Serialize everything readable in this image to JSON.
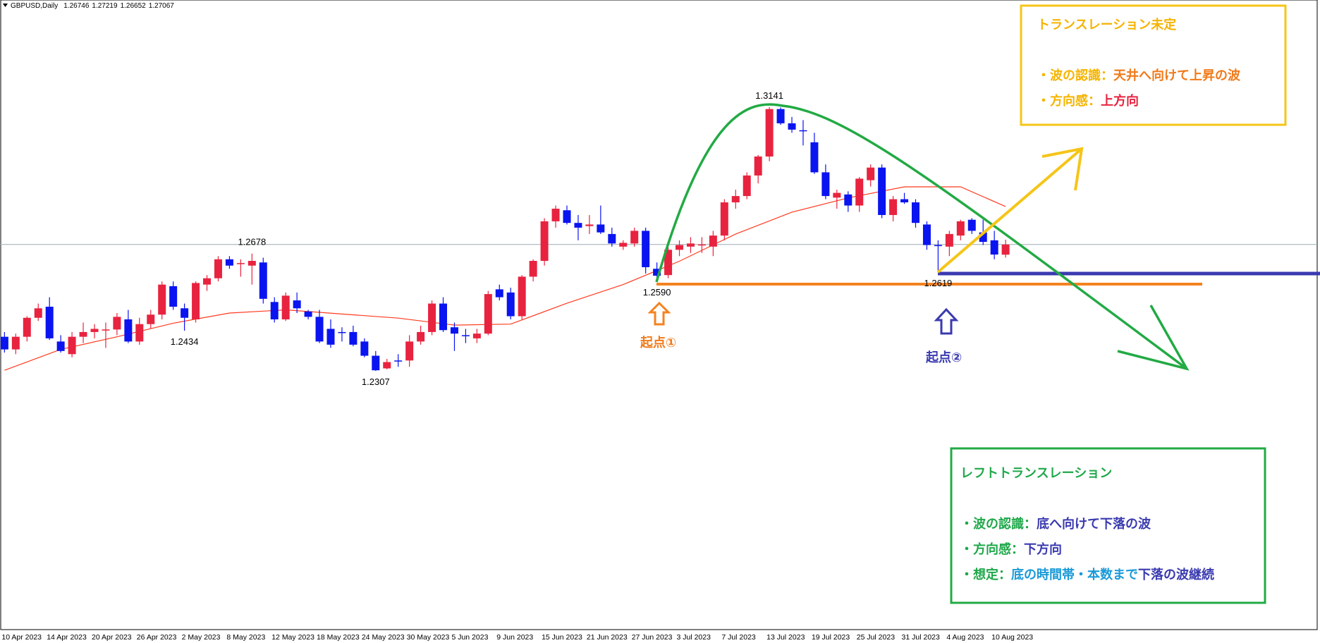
{
  "chart_data": {
    "type": "candlestick",
    "title": "GBPUSD,Daily",
    "up_color": "#e8233f",
    "down_color": "#0a14f0",
    "ylim": [
      1.1489,
      1.3442
    ],
    "xlim": [
      -0.4,
      116.7
    ],
    "categories": [
      "10 Apr 2023",
      null,
      null,
      null,
      "14 Apr 2023",
      null,
      null,
      null,
      "20 Apr 2023",
      null,
      null,
      null,
      "26 Apr 2023",
      null,
      null,
      null,
      "2 May 2023",
      null,
      null,
      null,
      "8 May 2023",
      null,
      null,
      null,
      "12 May 2023",
      null,
      null,
      null,
      "18 May 2023",
      null,
      null,
      null,
      "24 May 2023",
      null,
      null,
      null,
      "30 May 2023",
      null,
      null,
      null,
      "5 Jun 2023",
      null,
      null,
      null,
      "9 Jun 2023",
      null,
      null,
      null,
      "15 Jun 2023",
      null,
      null,
      null,
      "21 Jun 2023",
      null,
      null,
      null,
      "27 Jun 2023",
      null,
      null,
      null,
      "3 Jul 2023",
      null,
      null,
      null,
      "7 Jul 2023",
      null,
      null,
      null,
      "13 Jul 2023",
      null,
      null,
      null,
      "19 Jul 2023",
      null,
      null,
      null,
      "25 Jul 2023",
      null,
      null,
      null,
      "31 Jul 2023",
      null,
      null,
      null,
      "4 Aug 2023",
      null,
      null,
      null,
      "10 Aug 2023",
      null
    ],
    "open": [
      1.2415,
      1.2375,
      1.2415,
      1.2475,
      1.251,
      1.24,
      1.236,
      1.2415,
      1.243,
      1.2436,
      1.2438,
      1.247,
      1.24,
      1.2455,
      1.2485,
      1.2575,
      1.2505,
      1.247,
      1.258,
      1.26,
      1.266,
      1.2645,
      1.264,
      1.265,
      1.2525,
      1.247,
      1.253,
      1.2495,
      1.2478,
      1.244,
      1.243,
      1.243,
      1.24,
      1.2355,
      1.2315,
      1.234,
      1.234,
      1.24,
      1.243,
      1.252,
      1.2445,
      1.242,
      1.241,
      1.2425,
      1.2565,
      1.2555,
      1.248,
      1.2605,
      1.2655,
      1.278,
      1.2815,
      1.2775,
      1.2765,
      1.277,
      1.274,
      1.27,
      1.271,
      1.275,
      1.263,
      1.261,
      1.269,
      1.27,
      1.2705,
      1.27,
      1.2735,
      1.284,
      1.286,
      1.2925,
      1.2985,
      1.3135,
      1.309,
      1.3068,
      1.303,
      1.2935,
      1.2855,
      1.2865,
      1.283,
      1.291,
      1.295,
      1.28,
      1.285,
      1.284,
      1.277,
      1.2705,
      1.27,
      1.2735,
      1.2785,
      1.2745,
      1.272,
      1.26746
    ],
    "high": [
      1.243,
      1.2425,
      1.248,
      1.252,
      1.254,
      1.242,
      1.243,
      1.246,
      1.2455,
      1.246,
      1.249,
      1.25,
      1.2475,
      1.25,
      1.259,
      1.259,
      1.252,
      1.259,
      1.261,
      1.267,
      1.267,
      1.266,
      1.2678,
      1.2665,
      1.254,
      1.2555,
      1.2555,
      1.25,
      1.25,
      1.247,
      1.2445,
      1.245,
      1.241,
      1.237,
      1.2345,
      1.236,
      1.242,
      1.245,
      1.253,
      1.254,
      1.246,
      1.244,
      1.244,
      1.256,
      1.258,
      1.257,
      1.261,
      1.266,
      1.279,
      1.283,
      1.283,
      1.28,
      1.28,
      1.283,
      1.276,
      1.272,
      1.276,
      1.276,
      1.265,
      1.27,
      1.272,
      1.273,
      1.273,
      1.275,
      1.285,
      1.288,
      1.2935,
      1.299,
      1.3141,
      1.314,
      1.311,
      1.31,
      1.306,
      1.296,
      1.288,
      1.2875,
      1.292,
      1.296,
      1.296,
      1.286,
      1.287,
      1.285,
      1.278,
      1.272,
      1.275,
      1.2785,
      1.279,
      1.2785,
      1.275,
      1.27219
    ],
    "low": [
      1.2365,
      1.236,
      1.24,
      1.2465,
      1.2405,
      1.2365,
      1.235,
      1.2395,
      1.241,
      1.238,
      1.242,
      1.2395,
      1.239,
      1.244,
      1.247,
      1.25,
      1.2434,
      1.246,
      1.256,
      1.259,
      1.263,
      1.2605,
      1.258,
      1.252,
      1.246,
      1.2465,
      1.249,
      1.247,
      1.2395,
      1.238,
      1.24,
      1.2385,
      1.235,
      1.2307,
      1.2312,
      1.232,
      1.232,
      1.239,
      1.242,
      1.243,
      1.237,
      1.2395,
      1.2395,
      1.242,
      1.253,
      1.247,
      1.247,
      1.259,
      1.264,
      1.276,
      1.277,
      1.272,
      1.274,
      1.274,
      1.27,
      1.269,
      1.27,
      1.2615,
      1.259,
      1.26,
      1.267,
      1.268,
      1.268,
      1.267,
      1.272,
      1.282,
      1.285,
      1.29,
      1.297,
      1.3085,
      1.306,
      1.302,
      1.293,
      1.285,
      1.282,
      1.281,
      1.281,
      1.289,
      1.279,
      1.278,
      1.2835,
      1.276,
      1.269,
      1.2619,
      1.267,
      1.272,
      1.274,
      1.2705,
      1.266,
      1.26652
    ],
    "close": [
      1.2375,
      1.2415,
      1.2475,
      1.2505,
      1.241,
      1.237,
      1.2415,
      1.243,
      1.244,
      1.2438,
      1.2478,
      1.24,
      1.2455,
      1.2485,
      1.258,
      1.251,
      1.2475,
      1.2585,
      1.26,
      1.266,
      1.264,
      1.2648,
      1.2655,
      1.2535,
      1.247,
      1.2545,
      1.2505,
      1.2478,
      1.24,
      1.239,
      1.2428,
      1.239,
      1.2355,
      1.2309,
      1.2335,
      1.2338,
      1.24,
      1.243,
      1.252,
      1.2436,
      1.2425,
      1.2418,
      1.2425,
      1.255,
      1.254,
      1.248,
      1.2605,
      1.2655,
      1.278,
      1.282,
      1.2775,
      1.276,
      1.277,
      1.2745,
      1.271,
      1.2712,
      1.275,
      1.2635,
      1.2608,
      1.269,
      1.2705,
      1.271,
      1.2707,
      1.2735,
      1.284,
      1.286,
      1.2925,
      1.2985,
      1.3135,
      1.309,
      1.307,
      1.3066,
      1.2935,
      1.286,
      1.287,
      1.283,
      1.2915,
      1.295,
      1.28,
      1.285,
      1.284,
      1.2775,
      1.2705,
      1.2703,
      1.274,
      1.278,
      1.275,
      1.2715,
      1.2675,
      1.27067
    ],
    "moving_average": {
      "color": "#ff3b1f",
      "x": [
        0,
        5,
        10,
        15,
        20,
        25,
        30,
        35,
        40,
        45,
        50,
        55,
        60,
        65,
        70,
        75,
        80,
        85,
        89
      ],
      "values": [
        1.2309,
        1.2375,
        1.2415,
        1.2458,
        1.249,
        1.25,
        1.2487,
        1.2474,
        1.2452,
        1.2455,
        1.2521,
        1.258,
        1.2654,
        1.274,
        1.2809,
        1.2854,
        1.2889,
        1.2889,
        1.2827
      ]
    },
    "price_labels": [
      {
        "x": 22,
        "value": 1.2678,
        "label": "1.2678"
      },
      {
        "x": 16,
        "value": 1.2434,
        "label": "1.2434"
      },
      {
        "x": 33,
        "value": 1.2307,
        "label": "1.2307"
      },
      {
        "x": 58,
        "value": 1.259,
        "label": "1.2590"
      },
      {
        "x": 68,
        "value": 1.3141,
        "label": "1.3141"
      },
      {
        "x": 83,
        "value": 1.2619,
        "label": "1.2619"
      }
    ]
  },
  "annotations": {
    "start_1": "起点①",
    "start_2": "起点②",
    "upper_box": {
      "title": "トランスレーション未定",
      "line_1": [
        "・波の認識：",
        "天井へ向けて上昇の波"
      ],
      "line_2": [
        "・方向感：",
        "上方向"
      ]
    },
    "lower_box": {
      "title": "レフトトランスレーション",
      "line_1": [
        "・波の認識：",
        "底へ向けて下落の波"
      ],
      "line_2": [
        "・方向感：",
        "下方向"
      ],
      "line_3": [
        "・想定：",
        "底の時間帯・本数まで",
        "下落の波継続"
      ]
    }
  }
}
